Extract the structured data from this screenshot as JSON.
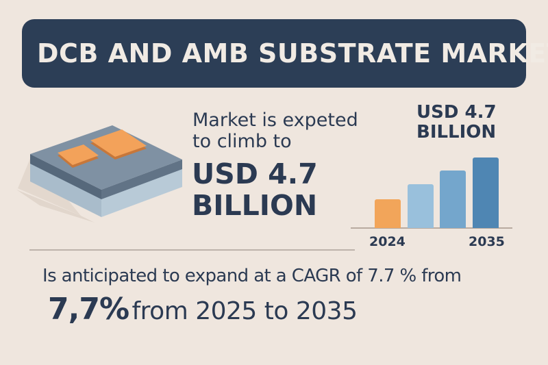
{
  "header": {
    "title": "DCB AND AMB SUBSTRATE MARKET",
    "background_color": "#2c3e56"
  },
  "illustration": {
    "icon": "substrate-chip-icon",
    "colors": {
      "top": "#7d8fa0",
      "edge_dark": "#55677a",
      "side": "#a8bccb",
      "pads": "#f0a058"
    }
  },
  "projection": {
    "lead_line_1": "Market is expeted",
    "lead_line_2": "to climb to",
    "value_line_1": "USD 4.7",
    "value_line_2": "BILLION"
  },
  "chart_data": {
    "type": "bar",
    "title": "USD 4.7 BILLION",
    "annotation_line_1": "USD 4.7",
    "annotation_line_2": "BILLION",
    "categories": [
      "2024",
      "",
      "",
      "2035"
    ],
    "tick_labels": {
      "first": "2024",
      "last": "2035"
    },
    "values": [
      1.9,
      2.9,
      3.8,
      4.7
    ],
    "colors": [
      "#f2a55a",
      "#99c0dc",
      "#74a6cc",
      "#4f86b3"
    ],
    "xlabel": "",
    "ylabel": "",
    "ylim": [
      0,
      5
    ],
    "grid": false,
    "legend": "none"
  },
  "cagr": {
    "sentence": "Is anticipated to expand at a CAGR of 7.7 % from",
    "big_value": "7,7%",
    "period_text": "from 2025 to 2035"
  },
  "colors": {
    "background": "#efe6de",
    "text": "#2b3a52",
    "divider": "#bdb3ab"
  }
}
